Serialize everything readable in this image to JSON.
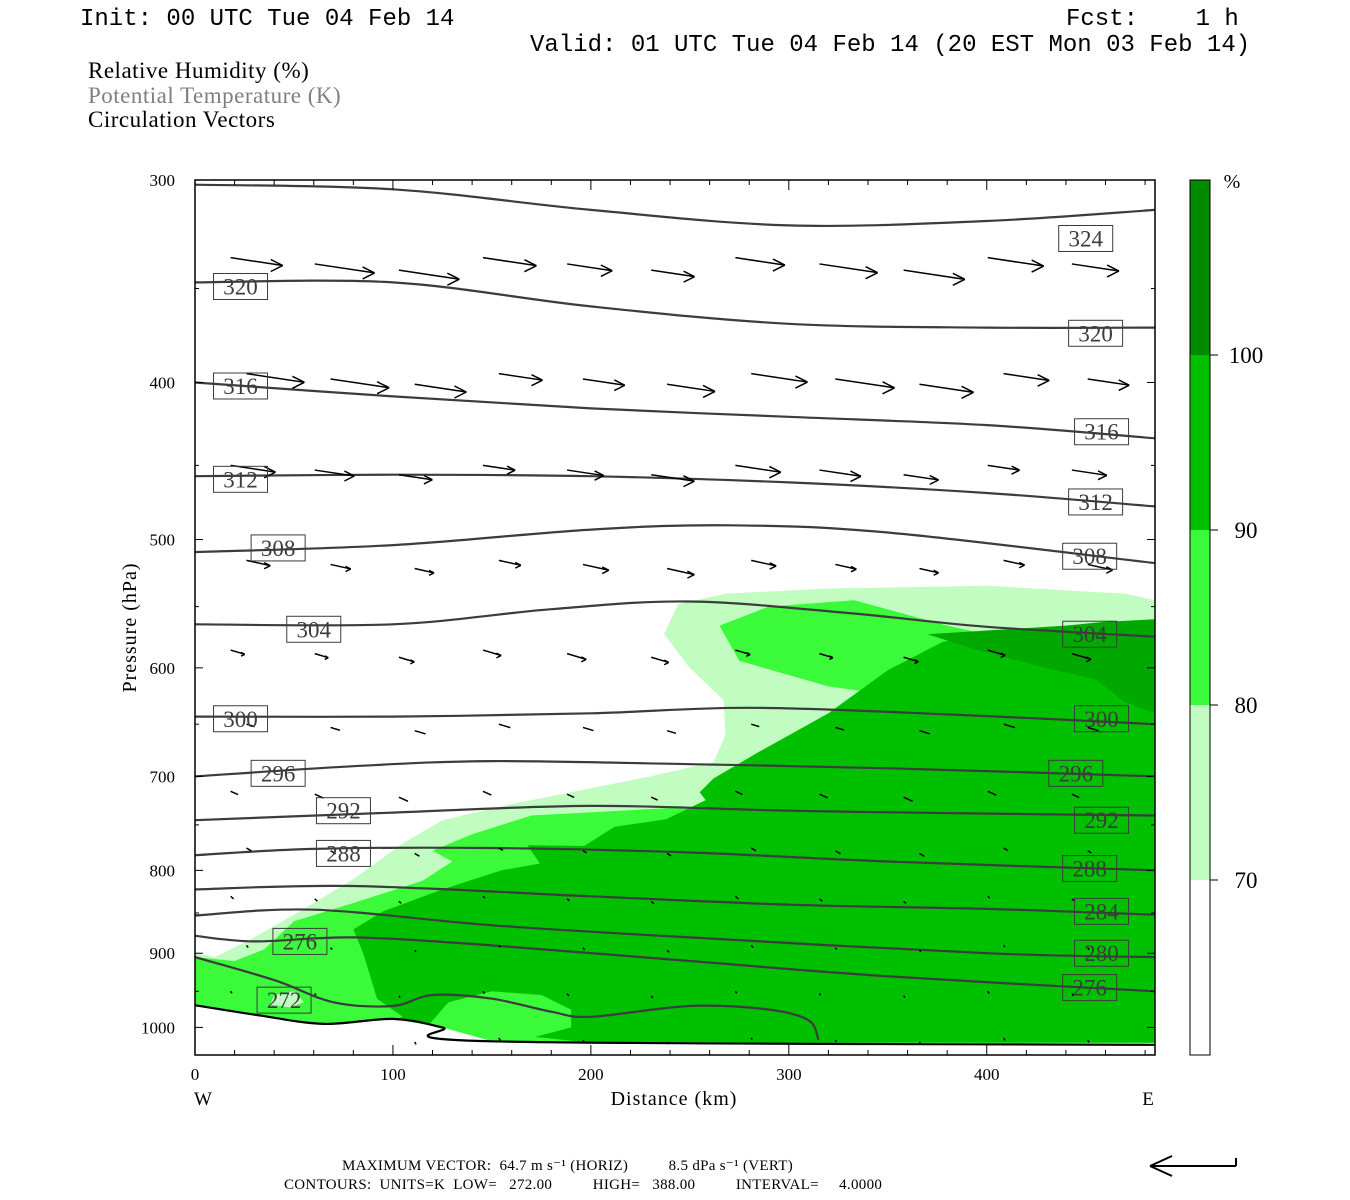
{
  "header": {
    "init": "Init: 00 UTC Tue 04 Feb 14",
    "fcst": "Fcst:    1 h",
    "valid": "Valid: 01 UTC Tue 04 Feb 14 (20 EST Mon 03 Feb 14)"
  },
  "fields": [
    {
      "label": "Relative Humidity (%)",
      "color": "#000000"
    },
    {
      "label": "Potential Temperature (K)",
      "color": "#7f7f7f"
    },
    {
      "label": "Circulation Vectors",
      "color": "#000000"
    }
  ],
  "footer": {
    "max_vector": "MAXIMUM VECTOR:  64.7 m s⁻¹ (HORIZ)          8.5 dPa s⁻¹ (VERT)",
    "contours": "CONTOURS:  UNITS=K  LOW=   272.00          HIGH=   388.00          INTERVAL=     4.0000"
  },
  "chart_data": {
    "type": "cross-section",
    "xlabel": "Distance (km)",
    "ylabel": "Pressure (hPa)",
    "xlim": [
      0,
      485
    ],
    "ylim": [
      1040,
      300
    ],
    "y_log": true,
    "x_ticks": [
      0,
      100,
      200,
      300,
      400
    ],
    "y_ticks": [
      300,
      400,
      500,
      600,
      700,
      800,
      900,
      1000
    ],
    "x_end_labels": {
      "left": "W",
      "right": "E"
    },
    "colorbar": {
      "unit": "%",
      "ticks": [
        70,
        80,
        90,
        100
      ],
      "bins": [
        {
          "range": [
            60,
            70
          ],
          "color": "#ffffff"
        },
        {
          "range": [
            70,
            80
          ],
          "color": "#c1fdc1"
        },
        {
          "range": [
            80,
            90
          ],
          "color": "#3afa3a"
        },
        {
          "range": [
            90,
            100
          ],
          "color": "#00c000"
        },
        {
          "range": [
            100,
            110
          ],
          "color": "#008a00"
        }
      ]
    },
    "rh_regions": [
      {
        "level": 70,
        "color": "#c1fdc1",
        "points": [
          [
            0,
            900
          ],
          [
            10,
            905
          ],
          [
            30,
            880
          ],
          [
            55,
            845
          ],
          [
            80,
            810
          ],
          [
            105,
            770
          ],
          [
            125,
            745
          ],
          [
            160,
            728
          ],
          [
            200,
            712
          ],
          [
            230,
            700
          ],
          [
            262,
            686
          ],
          [
            268,
            660
          ],
          [
            267,
            628
          ],
          [
            250,
            600
          ],
          [
            237,
            572
          ],
          [
            244,
            548
          ],
          [
            268,
            540
          ],
          [
            320,
            536
          ],
          [
            400,
            534
          ],
          [
            470,
            540
          ],
          [
            485,
            545
          ],
          [
            485,
            1022
          ],
          [
            0,
            1022
          ]
        ]
      },
      {
        "level": 80,
        "color": "#3afa3a",
        "points": [
          [
            0,
            905
          ],
          [
            20,
            910
          ],
          [
            35,
            895
          ],
          [
            50,
            860
          ],
          [
            80,
            838
          ],
          [
            115,
            812
          ],
          [
            130,
            790
          ],
          [
            120,
            778
          ],
          [
            140,
            760
          ],
          [
            170,
            740
          ],
          [
            260,
            730
          ],
          [
            370,
            728
          ],
          [
            400,
            715
          ],
          [
            420,
            680
          ],
          [
            437,
            645
          ],
          [
            450,
            606
          ],
          [
            436,
            585
          ],
          [
            380,
            565
          ],
          [
            333,
            545
          ],
          [
            290,
            550
          ],
          [
            265,
            565
          ],
          [
            275,
            594
          ],
          [
            320,
            616
          ],
          [
            385,
            632
          ],
          [
            418,
            642
          ],
          [
            485,
            642
          ],
          [
            485,
            1022
          ],
          [
            0,
            1022
          ]
        ]
      }
    ],
    "theta": [
      {
        "value": 324,
        "points": [
          [
            0,
            302
          ],
          [
            100,
            304
          ],
          [
            200,
            313
          ],
          [
            300,
            320
          ],
          [
            400,
            318
          ],
          [
            485,
            313
          ]
        ]
      },
      {
        "value": 320,
        "points": [
          [
            0,
            347
          ],
          [
            100,
            347
          ],
          [
            200,
            359
          ],
          [
            300,
            368
          ],
          [
            400,
            370
          ],
          [
            485,
            370
          ]
        ]
      },
      {
        "value": 316,
        "points": [
          [
            0,
            400
          ],
          [
            100,
            408
          ],
          [
            200,
            415
          ],
          [
            300,
            420
          ],
          [
            400,
            425
          ],
          [
            485,
            433
          ]
        ]
      },
      {
        "value": 312,
        "points": [
          [
            0,
            457
          ],
          [
            100,
            456
          ],
          [
            200,
            457
          ],
          [
            300,
            461
          ],
          [
            400,
            468
          ],
          [
            485,
            477
          ]
        ]
      },
      {
        "value": 308,
        "points": [
          [
            0,
            509
          ],
          [
            100,
            504
          ],
          [
            200,
            493
          ],
          [
            270,
            490
          ],
          [
            350,
            495
          ],
          [
            485,
            517
          ]
        ]
      },
      {
        "value": 304,
        "points": [
          [
            0,
            564
          ],
          [
            100,
            564
          ],
          [
            180,
            552
          ],
          [
            250,
            546
          ],
          [
            330,
            555
          ],
          [
            400,
            566
          ],
          [
            485,
            574
          ]
        ]
      },
      {
        "value": 300,
        "points": [
          [
            0,
            643
          ],
          [
            100,
            643
          ],
          [
            200,
            640
          ],
          [
            280,
            635
          ],
          [
            380,
            641
          ],
          [
            485,
            650
          ]
        ]
      },
      {
        "value": 296,
        "points": [
          [
            0,
            700
          ],
          [
            80,
            690
          ],
          [
            150,
            685
          ],
          [
            250,
            688
          ],
          [
            350,
            692
          ],
          [
            485,
            700
          ]
        ]
      },
      {
        "value": 292,
        "points": [
          [
            0,
            745
          ],
          [
            100,
            737
          ],
          [
            200,
            730
          ],
          [
            300,
            735
          ],
          [
            400,
            738
          ],
          [
            485,
            740
          ]
        ]
      },
      {
        "value": 288,
        "points": [
          [
            0,
            783
          ],
          [
            60,
            776
          ],
          [
            150,
            775
          ],
          [
            250,
            780
          ],
          [
            350,
            790
          ],
          [
            485,
            800
          ]
        ]
      },
      {
        "value": 284,
        "points": [
          [
            0,
            822
          ],
          [
            80,
            818
          ],
          [
            200,
            830
          ],
          [
            300,
            840
          ],
          [
            400,
            845
          ],
          [
            485,
            852
          ]
        ]
      },
      {
        "value": 280,
        "points": [
          [
            0,
            853
          ],
          [
            60,
            846
          ],
          [
            150,
            865
          ],
          [
            250,
            880
          ],
          [
            400,
            900
          ],
          [
            485,
            905
          ]
        ]
      },
      {
        "value": 276,
        "points": [
          [
            0,
            878
          ],
          [
            30,
            885
          ],
          [
            80,
            880
          ],
          [
            150,
            890
          ],
          [
            250,
            910
          ],
          [
            350,
            930
          ],
          [
            485,
            950
          ]
        ]
      },
      {
        "value": 272,
        "points": [
          [
            0,
            905
          ],
          [
            40,
            935
          ],
          [
            70,
            965
          ],
          [
            100,
            970
          ],
          [
            120,
            955
          ],
          [
            150,
            960
          ],
          [
            180,
            978
          ],
          [
            200,
            985
          ],
          [
            250,
            970
          ],
          [
            290,
            975
          ],
          [
            310,
            990
          ],
          [
            315,
            1018
          ]
        ]
      }
    ],
    "theta_labels": [
      {
        "value": 324,
        "x": 450,
        "p": 326
      },
      {
        "value": 320,
        "x": 23,
        "p": 349
      },
      {
        "value": 320,
        "x": 455,
        "p": 373
      },
      {
        "value": 316,
        "x": 23,
        "p": 402
      },
      {
        "value": 316,
        "x": 458,
        "p": 429
      },
      {
        "value": 312,
        "x": 23,
        "p": 459
      },
      {
        "value": 312,
        "x": 455,
        "p": 474
      },
      {
        "value": 308,
        "x": 42,
        "p": 506
      },
      {
        "value": 308,
        "x": 452,
        "p": 512
      },
      {
        "value": 304,
        "x": 60,
        "p": 568
      },
      {
        "value": 304,
        "x": 452,
        "p": 572
      },
      {
        "value": 300,
        "x": 23,
        "p": 645
      },
      {
        "value": 300,
        "x": 458,
        "p": 645
      },
      {
        "value": 296,
        "x": 42,
        "p": 697
      },
      {
        "value": 296,
        "x": 445,
        "p": 697
      },
      {
        "value": 292,
        "x": 75,
        "p": 735
      },
      {
        "value": 292,
        "x": 458,
        "p": 745
      },
      {
        "value": 288,
        "x": 75,
        "p": 781
      },
      {
        "value": 288,
        "x": 452,
        "p": 798
      },
      {
        "value": 284,
        "x": 458,
        "p": 848
      },
      {
        "value": 280,
        "x": 458,
        "p": 900
      },
      {
        "value": 276,
        "x": 53,
        "p": 885
      },
      {
        "value": 276,
        "x": 452,
        "p": 945
      },
      {
        "value": 272,
        "x": 45,
        "p": 962
      }
    ]
  }
}
